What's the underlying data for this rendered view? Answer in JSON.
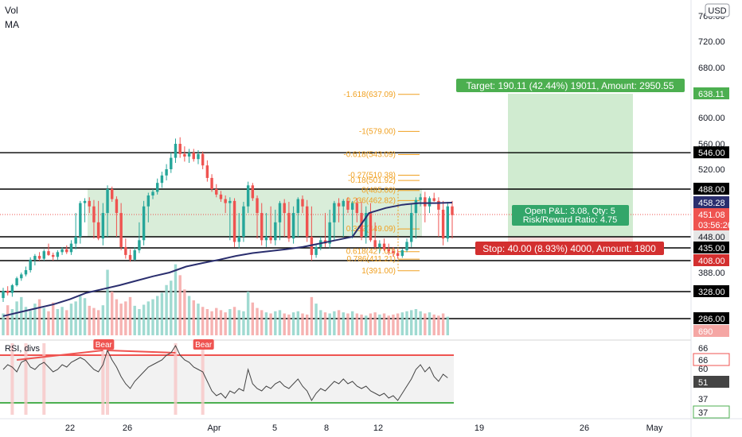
{
  "legend": {
    "volume": "Vol",
    "ma": "MA"
  },
  "currency_badge": "USD",
  "colors": {
    "up": "#26a69a",
    "down": "#ef5350",
    "ma_line": "#2a2e6e",
    "fib": "#f0a020",
    "profit_zone": "#c8e8c8",
    "loss_zone": "#f8d4d4",
    "target_box": "#4caf50",
    "stop_box": "#d32f2f",
    "rsi_line": "#444444",
    "rsi_upper": "#ef5350",
    "rsi_lower": "#4caf50",
    "level_line": "#000000"
  },
  "chart_data": [
    {
      "type": "candlestick",
      "price_axis": {
        "ticks": [
          "760.00",
          "720.00",
          "680.00",
          "600.00",
          "560.00",
          "520.00",
          "388.00"
        ],
        "range": [
          270,
          770
        ]
      },
      "x_ticks": [
        "22",
        "26",
        "Apr",
        "5",
        "8",
        "12",
        "19",
        "26",
        "May"
      ],
      "levels": [
        {
          "value": 546,
          "label": "546.00"
        },
        {
          "value": 488,
          "label": "488.00"
        },
        {
          "value": 448,
          "label": "448.00"
        },
        {
          "value": 435,
          "label": "435.00"
        },
        {
          "value": 408,
          "label": "408.00"
        },
        {
          "value": 328,
          "label": "328.00"
        },
        {
          "value": 286,
          "label": "286.00"
        }
      ],
      "price_badges": [
        {
          "value": 638.11,
          "label": "638.11",
          "kind": "target"
        },
        {
          "value": 458.28,
          "label": "458.28",
          "kind": "ma"
        },
        {
          "value": 451.08,
          "label": "451.08",
          "kind": "last"
        },
        {
          "value": 448,
          "label": "03:56:26",
          "kind": "countdown"
        }
      ],
      "fibonacci": [
        {
          "ratio": "-1.618",
          "value": 637.09,
          "label": "-1.618(637.09)"
        },
        {
          "ratio": "-1",
          "value": 579.0,
          "label": "-1(579.00)"
        },
        {
          "ratio": "-0.618",
          "value": 543.09,
          "label": "-0.618(543.09)"
        },
        {
          "ratio": "-0.27",
          "value": 510.38,
          "label": "-0.27(510.38)"
        },
        {
          "ratio": "-0.18",
          "value": 501.92,
          "label": "-0.18(501.92)"
        },
        {
          "ratio": "0",
          "value": 485.0,
          "label": "0(485.00)"
        },
        {
          "ratio": "0.236",
          "value": 462.82,
          "label": "0.236(462.82)"
        },
        {
          "ratio": "0.382",
          "value": 449.09,
          "label": "0.382(449.09)"
        },
        {
          "ratio": "0.618",
          "value": 427.0,
          "label": "0.618(427.00)"
        },
        {
          "ratio": "0.786",
          "value": 411.21,
          "label": "0.786(411.21)"
        },
        {
          "ratio": "1",
          "value": 391.0,
          "label": "1(391.00)"
        }
      ],
      "position": {
        "entry": 448,
        "target": 638.11,
        "stop": 408,
        "target_text": "Target: 190.11 (42.44%) 19011, Amount: 2950.55",
        "stop_text": "Stop: 40.00 (8.93%) 4000, Amount: 1800",
        "pnl_text": "Open P&L: 3.08, Qty: 5",
        "rr_text": "Risk/Reward Ratio: 4.75"
      },
      "range_zone": {
        "from": 448,
        "to": 488
      },
      "candles": [
        [
          318,
          340,
          312,
          330
        ],
        [
          330,
          345,
          322,
          326
        ],
        [
          326,
          352,
          320,
          348
        ],
        [
          348,
          375,
          344,
          370
        ],
        [
          370,
          388,
          362,
          382
        ],
        [
          382,
          398,
          376,
          392
        ],
        [
          392,
          415,
          388,
          410
        ],
        [
          410,
          422,
          400,
          418
        ],
        [
          418,
          426,
          408,
          412
        ],
        [
          412,
          432,
          408,
          428
        ],
        [
          428,
          440,
          418,
          420
        ],
        [
          420,
          425,
          408,
          416
        ],
        [
          416,
          430,
          410,
          426
        ],
        [
          426,
          436,
          420,
          432
        ],
        [
          432,
          438,
          422,
          426
        ],
        [
          426,
          444,
          420,
          440
        ],
        [
          440,
          452,
          432,
          448
        ],
        [
          448,
          462,
          440,
          458
        ],
        [
          458,
          468,
          450,
          462
        ],
        [
          462,
          470,
          452,
          456
        ],
        [
          456,
          464,
          446,
          450
        ],
        [
          450,
          462,
          444,
          446
        ],
        [
          446,
          458,
          438,
          452
        ],
        [
          452,
          494,
          448,
          488
        ],
        [
          488,
          492,
          460,
          466
        ],
        [
          466,
          472,
          448,
          452
        ],
        [
          452,
          458,
          430,
          436
        ],
        [
          436,
          446,
          412,
          420
        ],
        [
          420,
          432,
          406,
          410
        ],
        [
          410,
          436,
          408,
          430
        ],
        [
          430,
          450,
          424,
          444
        ],
        [
          444,
          462,
          438,
          456
        ],
        [
          456,
          480,
          450,
          474
        ],
        [
          474,
          488,
          466,
          482
        ],
        [
          482,
          505,
          476,
          498
        ],
        [
          498,
          516,
          490,
          510
        ],
        [
          510,
          528,
          502,
          520
        ],
        [
          520,
          546,
          514,
          538
        ],
        [
          538,
          568,
          530,
          560
        ],
        [
          560,
          570,
          538,
          544
        ],
        [
          544,
          556,
          532,
          540
        ],
        [
          540,
          552,
          530,
          546
        ],
        [
          546,
          552,
          532,
          536
        ],
        [
          536,
          550,
          528,
          544
        ],
        [
          544,
          548,
          520,
          526
        ],
        [
          526,
          534,
          500,
          506
        ],
        [
          506,
          512,
          482,
          488
        ],
        [
          488,
          496,
          470,
          476
        ],
        [
          476,
          484,
          460,
          466
        ],
        [
          466,
          474,
          452,
          458
        ],
        [
          458,
          470,
          444,
          462
        ],
        [
          462,
          468,
          436,
          442
        ],
        [
          442,
          452,
          434,
          448
        ],
        [
          448,
          460,
          442,
          456
        ],
        [
          456,
          500,
          452,
          494
        ],
        [
          494,
          498,
          462,
          468
        ],
        [
          468,
          474,
          446,
          452
        ],
        [
          452,
          458,
          438,
          444
        ],
        [
          444,
          452,
          436,
          448
        ],
        [
          448,
          456,
          440,
          444
        ],
        [
          444,
          454,
          438,
          450
        ],
        [
          450,
          462,
          444,
          458
        ],
        [
          458,
          466,
          448,
          452
        ],
        [
          452,
          460,
          442,
          446
        ],
        [
          446,
          456,
          440,
          452
        ],
        [
          452,
          470,
          448,
          466
        ],
        [
          466,
          474,
          452,
          456
        ],
        [
          456,
          464,
          442,
          448
        ],
        [
          448,
          456,
          408,
          420
        ],
        [
          420,
          440,
          414,
          436
        ],
        [
          436,
          448,
          430,
          444
        ],
        [
          444,
          452,
          436,
          440
        ],
        [
          440,
          454,
          434,
          450
        ],
        [
          450,
          462,
          444,
          458
        ],
        [
          458,
          468,
          450,
          456
        ],
        [
          456,
          466,
          448,
          462
        ],
        [
          462,
          470,
          452,
          454
        ],
        [
          454,
          462,
          446,
          458
        ],
        [
          458,
          468,
          450,
          452
        ],
        [
          452,
          460,
          444,
          448
        ],
        [
          448,
          456,
          440,
          452
        ],
        [
          452,
          458,
          442,
          444
        ],
        [
          444,
          450,
          432,
          436
        ],
        [
          436,
          444,
          424,
          440
        ],
        [
          440,
          446,
          428,
          432
        ],
        [
          432,
          440,
          420,
          428
        ],
        [
          428,
          436,
          416,
          424
        ],
        [
          424,
          432,
          412,
          418
        ],
        [
          418,
          434,
          414,
          430
        ],
        [
          430,
          446,
          426,
          442
        ],
        [
          442,
          458,
          436,
          452
        ],
        [
          452,
          470,
          446,
          464
        ],
        [
          464,
          478,
          456,
          470
        ],
        [
          470,
          482,
          450,
          456
        ],
        [
          456,
          472,
          452,
          468
        ],
        [
          468,
          480,
          460,
          462
        ],
        [
          462,
          470,
          448,
          454
        ],
        [
          454,
          462,
          438,
          446
        ],
        [
          446,
          460,
          442,
          456
        ],
        [
          456,
          462,
          446,
          451
        ]
      ],
      "ma": [
        [
          0,
          290
        ],
        [
          20,
          296
        ],
        [
          40,
          302
        ],
        [
          60,
          308
        ],
        [
          80,
          316
        ],
        [
          100,
          326
        ],
        [
          120,
          336
        ],
        [
          140,
          348
        ],
        [
          160,
          362
        ],
        [
          180,
          376
        ],
        [
          200,
          388
        ],
        [
          220,
          398
        ],
        [
          240,
          404
        ],
        [
          260,
          410
        ],
        [
          280,
          418
        ],
        [
          300,
          424
        ],
        [
          320,
          428
        ],
        [
          340,
          432
        ],
        [
          360,
          436
        ],
        [
          380,
          440
        ],
        [
          400,
          444
        ],
        [
          420,
          448
        ],
        [
          440,
          452
        ],
        [
          460,
          455
        ],
        [
          480,
          457
        ],
        [
          500,
          458
        ],
        [
          520,
          458
        ],
        [
          540,
          458.28
        ]
      ]
    },
    {
      "type": "bar",
      "name": "Vol",
      "axis_badges": [
        "690"
      ],
      "values": [
        40,
        55,
        48,
        62,
        70,
        52,
        45,
        58,
        66,
        50,
        44,
        60,
        48,
        52,
        46,
        58,
        62,
        72,
        68,
        54,
        50,
        46,
        55,
        120,
        80,
        66,
        58,
        62,
        70,
        54,
        48,
        56,
        62,
        66,
        72,
        78,
        92,
        100,
        130,
        110,
        84,
        72,
        64,
        58,
        52,
        48,
        44,
        50,
        46,
        42,
        48,
        52,
        46,
        44,
        80,
        60,
        50,
        46,
        42,
        40,
        44,
        46,
        40,
        38,
        42,
        44,
        40,
        38,
        70,
        58,
        46,
        42,
        40,
        44,
        46,
        42,
        40,
        44,
        40,
        38,
        36,
        40,
        42,
        38,
        40,
        36,
        38,
        40,
        42,
        44,
        46,
        48,
        44,
        40,
        42,
        38,
        36,
        40,
        34
      ],
      "ymax": 160
    },
    {
      "type": "line",
      "name": "RSI",
      "title": "RSI, divs",
      "levels": [
        {
          "value": 70,
          "label": "66"
        },
        {
          "value": 30,
          "label": "37"
        }
      ],
      "axis_ticks": [
        "66",
        "60",
        "37"
      ],
      "axis_badges": [
        "66",
        "51",
        "37"
      ],
      "markers": [
        {
          "label": "Bear",
          "index": 22
        },
        {
          "label": "Bear",
          "index": 44
        }
      ],
      "values": [
        58,
        62,
        60,
        56,
        64,
        66,
        60,
        58,
        62,
        64,
        60,
        56,
        58,
        62,
        60,
        64,
        66,
        68,
        66,
        62,
        58,
        56,
        62,
        74,
        66,
        60,
        52,
        46,
        42,
        48,
        52,
        56,
        60,
        62,
        64,
        66,
        70,
        72,
        78,
        70,
        66,
        64,
        60,
        58,
        56,
        48,
        40,
        36,
        38,
        34,
        40,
        38,
        42,
        40,
        58,
        46,
        42,
        40,
        44,
        42,
        46,
        48,
        44,
        42,
        46,
        50,
        44,
        40,
        32,
        38,
        42,
        40,
        44,
        48,
        46,
        50,
        46,
        48,
        44,
        42,
        44,
        40,
        38,
        36,
        38,
        34,
        36,
        32,
        38,
        44,
        50,
        58,
        62,
        56,
        60,
        52,
        48,
        54,
        51
      ],
      "ylim": [
        20,
        80
      ]
    }
  ]
}
